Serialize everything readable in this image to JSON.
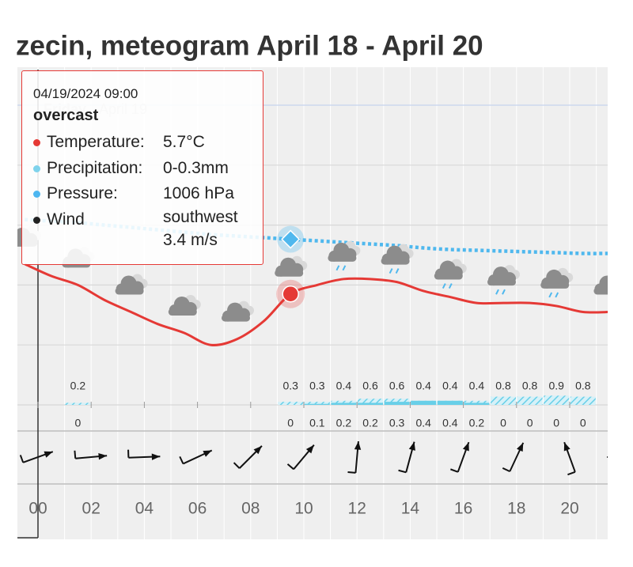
{
  "chart_data": {
    "type": "meteogram",
    "title": "zecin, meteogram April 18 - April 20",
    "day_label": {
      "day": "Friday",
      "date": "April 19"
    },
    "xticks": [
      {
        "value": 0,
        "label": "00"
      },
      {
        "value": 2,
        "label": "02"
      },
      {
        "value": 4,
        "label": "04"
      },
      {
        "value": 6,
        "label": "06"
      },
      {
        "value": 8,
        "label": "08"
      },
      {
        "value": 10,
        "label": "10"
      },
      {
        "value": 12,
        "label": "12"
      },
      {
        "value": 14,
        "label": "14"
      },
      {
        "value": 16,
        "label": "16"
      },
      {
        "value": 18,
        "label": "18"
      },
      {
        "value": 20,
        "label": "20"
      }
    ],
    "ylim": [
      2,
      12
    ],
    "yticks": [
      2,
      4,
      6,
      8,
      10,
      12
    ],
    "grid": true,
    "y2lim": [
      985,
      1023
    ],
    "x": [
      -1,
      0,
      1,
      2,
      3,
      4,
      5,
      6,
      7,
      8,
      9,
      10,
      11,
      12,
      13,
      14,
      15,
      16,
      17,
      18,
      19,
      20,
      21
    ],
    "series": [
      {
        "name": "Temperature",
        "color": "#e53935",
        "values": [
          6.7,
          6.3,
          6.0,
          5.5,
          5.1,
          4.7,
          4.4,
          4.0,
          4.2,
          4.8,
          5.7,
          6.0,
          6.2,
          6.2,
          6.1,
          5.8,
          5.6,
          5.4,
          5.4,
          5.4,
          5.3,
          5.1,
          5.1
        ]
      },
      {
        "name": "Pressure",
        "color": "#4fb8ee",
        "axis": "y2",
        "values": [
          1008.5,
          1008.3,
          1008.1,
          1007.8,
          1007.5,
          1007.2,
          1006.9,
          1006.6,
          1006.4,
          1006.2,
          1006,
          1005.8,
          1005.6,
          1005.4,
          1005.2,
          1004.9,
          1004.7,
          1004.6,
          1004.5,
          1004.4,
          1004.3,
          1004.2,
          1004.2
        ]
      }
    ],
    "precipitation": {
      "color": "#68cfe8",
      "x": [
        1,
        9,
        10,
        11,
        12,
        13,
        14,
        15,
        16,
        17,
        18,
        19,
        20
      ],
      "max": [
        0.2,
        0.3,
        0.3,
        0.4,
        0.6,
        0.6,
        0.4,
        0.4,
        0.4,
        0.8,
        0.8,
        0.9,
        0.8
      ],
      "min": [
        0,
        0,
        0.1,
        0.2,
        0.2,
        0.3,
        0.4,
        0.4,
        0.2,
        0,
        0,
        0,
        0
      ]
    },
    "wind": {
      "x": [
        0,
        2,
        4,
        6,
        8,
        10,
        12,
        14,
        16,
        18,
        20,
        22
      ],
      "direction": [
        250,
        265,
        268,
        245,
        225,
        220,
        185,
        195,
        200,
        205,
        160,
        90
      ]
    },
    "symbols": {
      "x": [
        -1,
        1,
        3,
        5,
        7,
        9,
        11,
        13,
        15,
        17,
        19,
        21
      ],
      "rain": [
        false,
        false,
        false,
        false,
        false,
        false,
        true,
        true,
        true,
        true,
        true,
        false
      ]
    },
    "highlight": 10,
    "tooltip": {
      "time": "04/19/2024 09:00",
      "condition": "overcast",
      "rows": [
        {
          "label": "Temperature:",
          "value": "5.7°C",
          "color": "#e53935"
        },
        {
          "label": "Precipitation:",
          "value": "0-0.3mm",
          "color": "#7fd3ec"
        },
        {
          "label": "Pressure:",
          "value": "1006 hPa",
          "color": "#4db6f0"
        },
        {
          "label": "Wind",
          "value": "southwest",
          "value2": "3.4 m/s",
          "color": "#222222"
        }
      ]
    }
  }
}
